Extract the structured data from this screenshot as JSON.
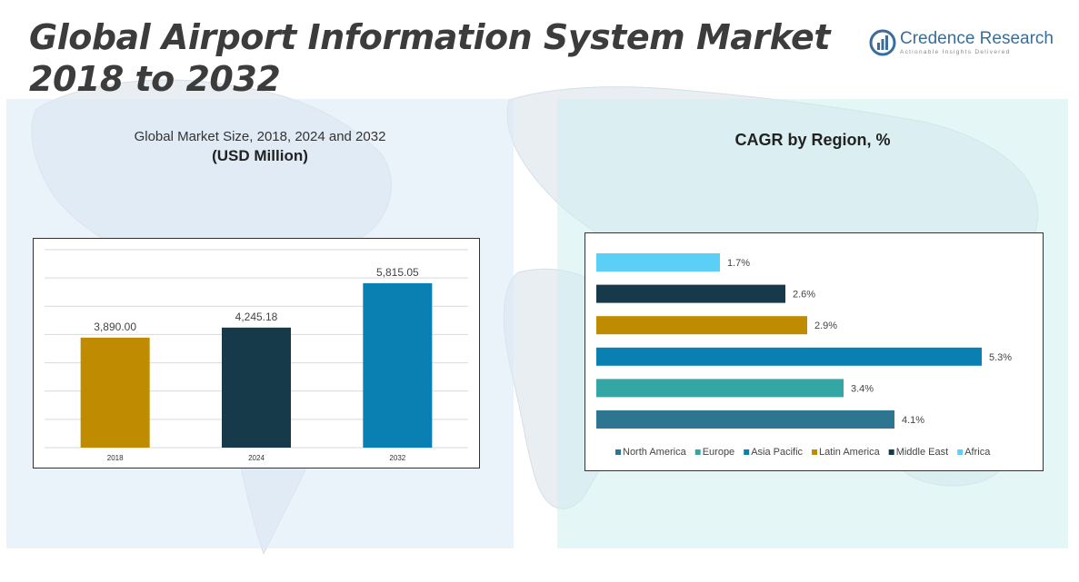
{
  "title": "Global Airport Information System Market 2018 to 2032",
  "logo": {
    "brand": "Credence Research",
    "tagline": "Actionable Insights Delivered"
  },
  "left_panel": {
    "title": "Global Market Size, 2018, 2024 and 2032",
    "subtitle": "(USD Million)"
  },
  "right_panel": {
    "title": "CAGR by Region, %"
  },
  "chart_data": [
    {
      "type": "bar",
      "categories": [
        "2018",
        "2024",
        "2032"
      ],
      "values": [
        3890.0,
        4245.18,
        5815.05
      ],
      "labels": [
        "3,890.00",
        "4,245.18",
        "5,815.05"
      ],
      "colors": [
        "#bf8b00",
        "#173a4a",
        "#0a7fb2"
      ],
      "title": "Global Market Size, 2018, 2024 and 2032",
      "ylabel": "(USD Million)",
      "ylim": [
        0,
        7000
      ],
      "grid": true
    },
    {
      "type": "bar",
      "orientation": "horizontal",
      "categories": [
        "Africa",
        "Middle East",
        "Latin America",
        "Asia Pacific",
        "Europe",
        "North America"
      ],
      "values": [
        1.7,
        2.6,
        2.9,
        5.3,
        3.4,
        4.1
      ],
      "labels": [
        "1.7%",
        "2.6%",
        "2.9%",
        "5.3%",
        "3.4%",
        "4.1%"
      ],
      "colors": [
        "#5ccff7",
        "#173a4a",
        "#bf8b00",
        "#0a7fb2",
        "#34a6a3",
        "#2d7591"
      ],
      "legend": [
        "North America",
        "Europe",
        "Asia Pacific",
        "Latin America",
        "Middle East",
        "Africa"
      ],
      "legend_colors": [
        "#2d7591",
        "#34a6a3",
        "#0a7fb2",
        "#bf8b00",
        "#173a4a",
        "#5ccff7"
      ],
      "legend_position": "bottom",
      "title": "CAGR by Region, %",
      "xlim": [
        0,
        6.0
      ]
    }
  ]
}
